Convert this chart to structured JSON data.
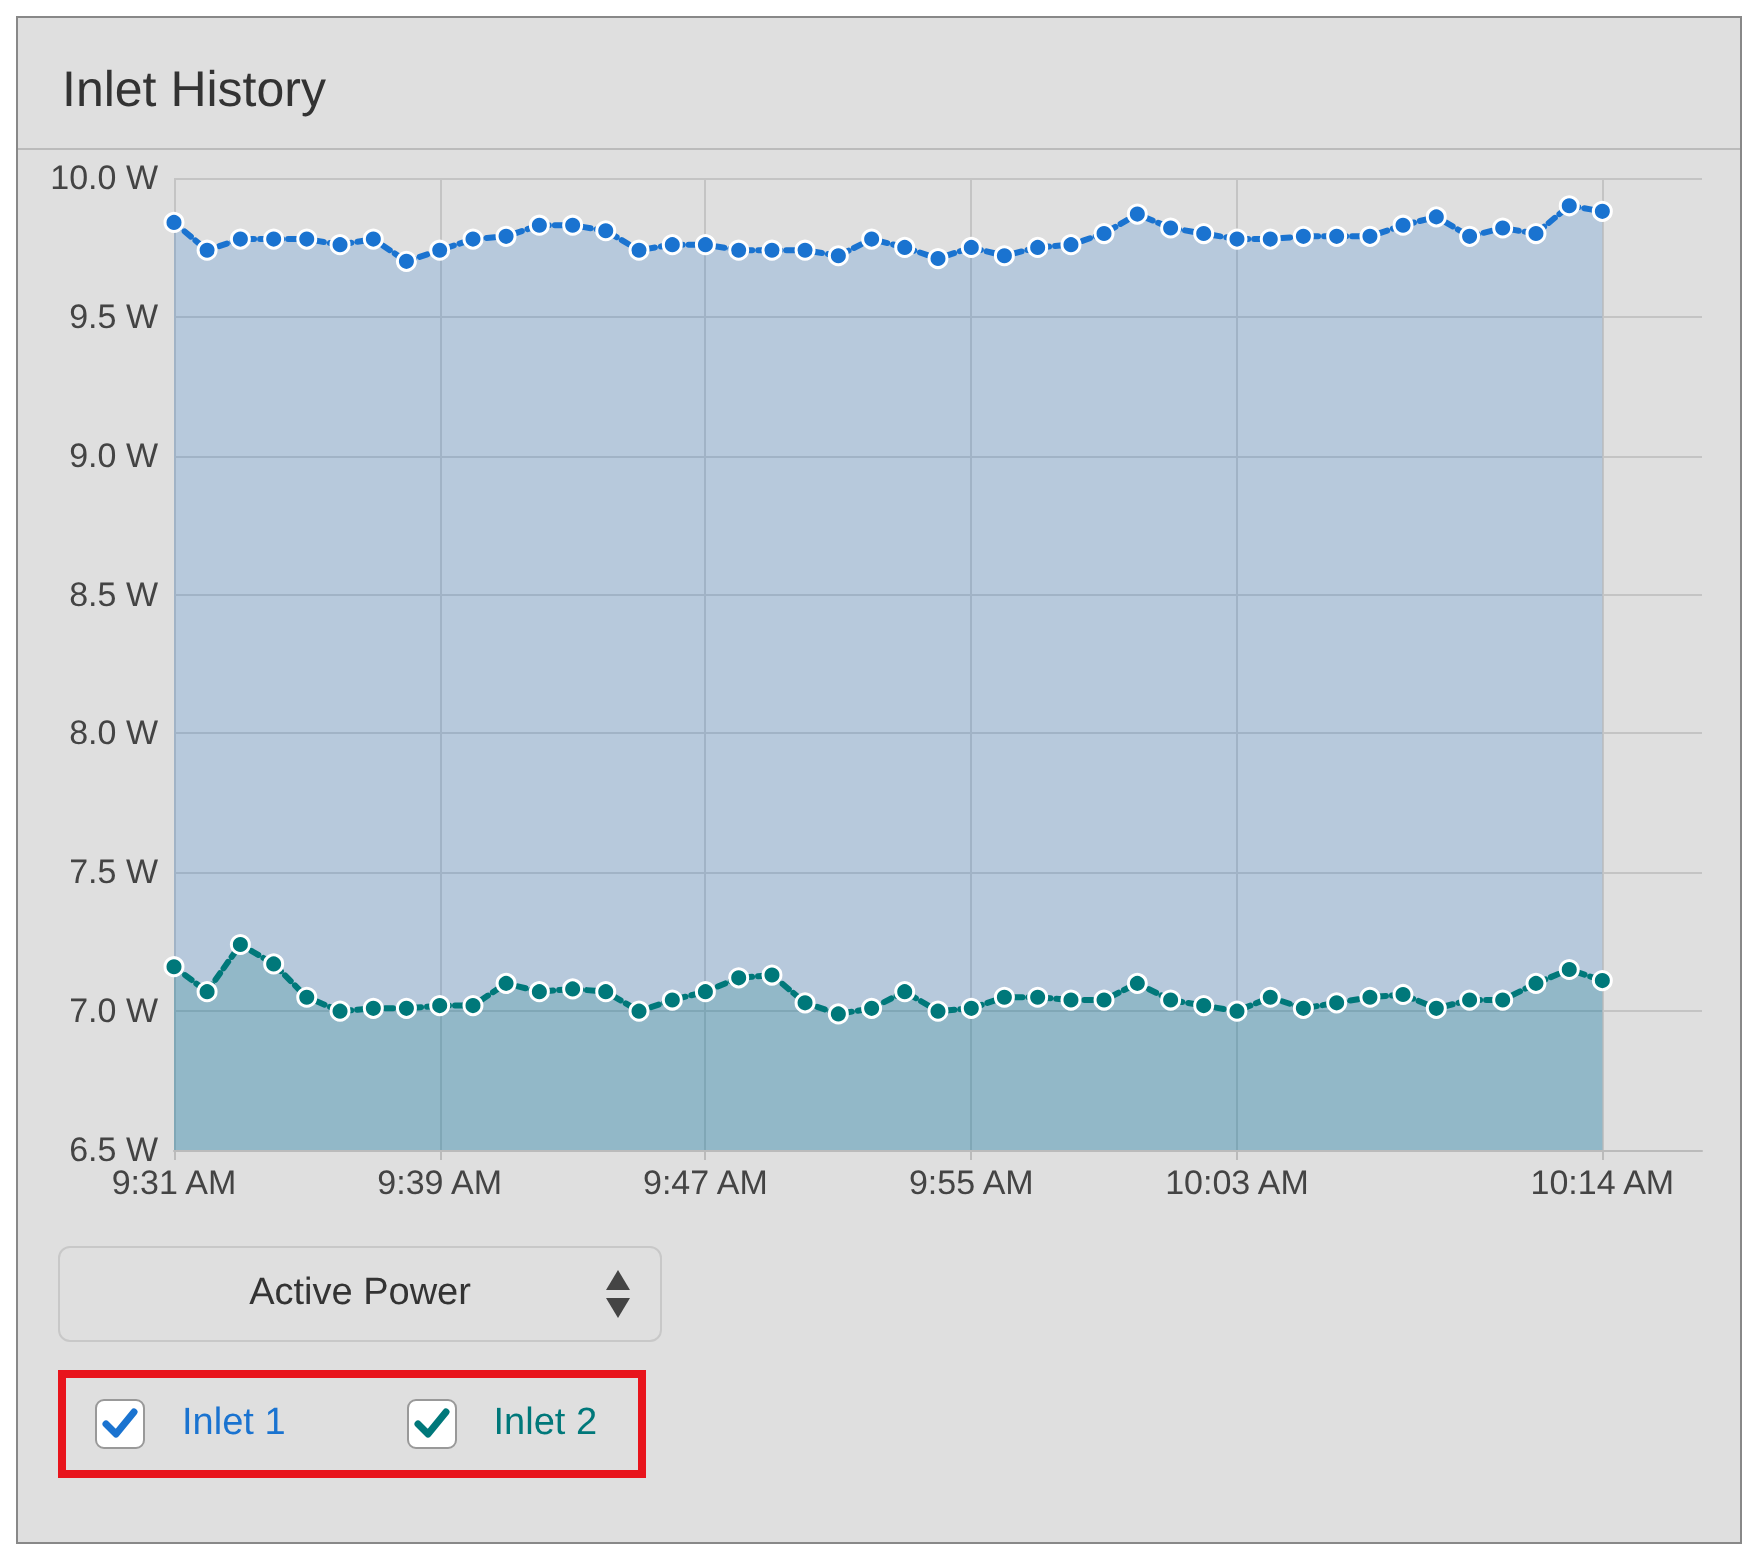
{
  "chart_data": {
    "type": "area",
    "title": "Inlet History",
    "x": [
      9.5167,
      9.5333,
      9.55,
      9.5667,
      9.5833,
      9.6,
      9.6167,
      9.6333,
      9.65,
      9.6667,
      9.6833,
      9.7,
      9.7167,
      9.7333,
      9.75,
      9.7667,
      9.7833,
      9.8,
      9.8167,
      9.8333,
      9.85,
      9.8667,
      9.8833,
      9.9,
      9.9167,
      9.9333,
      9.95,
      9.9667,
      9.9833,
      10,
      10.0167,
      10.0333,
      10.05,
      10.0667,
      10.0833,
      10.1,
      10.1167,
      10.1333,
      10.15,
      10.1667,
      10.1833,
      10.2,
      10.2167,
      10.2333
    ],
    "series": [
      {
        "name": "Inlet 1",
        "color": "#1a73d0",
        "values": [
          9.84,
          9.74,
          9.78,
          9.78,
          9.78,
          9.76,
          9.78,
          9.7,
          9.74,
          9.78,
          9.79,
          9.83,
          9.83,
          9.81,
          9.74,
          9.76,
          9.76,
          9.74,
          9.74,
          9.74,
          9.72,
          9.78,
          9.75,
          9.71,
          9.75,
          9.72,
          9.75,
          9.76,
          9.8,
          9.87,
          9.82,
          9.8,
          9.78,
          9.78,
          9.79,
          9.79,
          9.79,
          9.83,
          9.86,
          9.79,
          9.82,
          9.8,
          9.9,
          9.88
        ]
      },
      {
        "name": "Inlet 2",
        "color": "#00787a",
        "values": [
          7.16,
          7.07,
          7.24,
          7.17,
          7.05,
          7.0,
          7.01,
          7.01,
          7.02,
          7.02,
          7.1,
          7.07,
          7.08,
          7.07,
          7.0,
          7.04,
          7.07,
          7.12,
          7.13,
          7.03,
          6.99,
          7.01,
          7.07,
          7.0,
          7.01,
          7.05,
          7.05,
          7.04,
          7.04,
          7.1,
          7.04,
          7.02,
          7.0,
          7.05,
          7.01,
          7.03,
          7.05,
          7.06,
          7.01,
          7.04,
          7.04,
          7.1,
          7.15,
          7.11
        ]
      }
    ],
    "xlim": [
      9.5167,
      10.2833
    ],
    "xticks": [
      {
        "value": 9.5167,
        "label": "9:31 AM"
      },
      {
        "value": 9.65,
        "label": "9:39 AM"
      },
      {
        "value": 9.7833,
        "label": "9:47 AM"
      },
      {
        "value": 9.9167,
        "label": "9:55 AM"
      },
      {
        "value": 10.05,
        "label": "10:03 AM"
      },
      {
        "value": 10.2333,
        "label": "10:14 AM"
      }
    ],
    "ylim": [
      6.5,
      10.0
    ],
    "yticks": [
      {
        "value": 6.5,
        "label": "6.5 W"
      },
      {
        "value": 7.0,
        "label": "7.0 W"
      },
      {
        "value": 7.5,
        "label": "7.5 W"
      },
      {
        "value": 8.0,
        "label": "8.0 W"
      },
      {
        "value": 8.5,
        "label": "8.5 W"
      },
      {
        "value": 9.0,
        "label": "9.0 W"
      },
      {
        "value": 9.5,
        "label": "9.5 W"
      },
      {
        "value": 10.0,
        "label": "10.0 W"
      }
    ],
    "grid": true,
    "legend": "bottom left",
    "marker": "circle",
    "line_style": "dashed",
    "annotations": [
      "Active Power"
    ]
  }
}
